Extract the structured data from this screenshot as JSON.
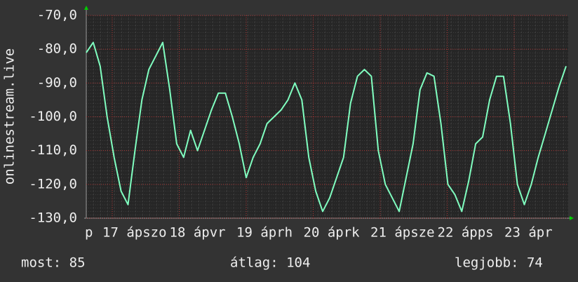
{
  "chart_data": {
    "type": "line",
    "y_label": "onlinestream.live",
    "xtick_labels": [
      "p",
      "17 ápszo",
      "18 ápvr",
      "19 áprh",
      "20 áprk",
      "21 ápsze",
      "22 ápps",
      "23 ápr"
    ],
    "series": [
      {
        "color": "#80ffc0",
        "values": [
          -81,
          -78,
          -85,
          -100,
          -112,
          -122,
          -126,
          -110,
          -95,
          -86,
          -82,
          -78,
          -92,
          -108,
          -112,
          -104,
          -110,
          -104,
          -98,
          -93,
          -93,
          -100,
          -108,
          -118,
          -112,
          -108,
          -102,
          -100,
          -98,
          -95,
          -90,
          -95,
          -112,
          -122,
          -128,
          -124,
          -118,
          -112,
          -96,
          -88,
          -86,
          -88,
          -110,
          -120,
          -124,
          -128,
          -118,
          -108,
          -92,
          -87,
          -88,
          -102,
          -120,
          -123,
          -128,
          -119,
          -108,
          -106,
          -95,
          -88,
          -88,
          -102,
          -120,
          -126,
          -120,
          -112,
          -105,
          -98,
          -91,
          -85
        ]
      }
    ],
    "ylim": [
      -130,
      -70
    ],
    "yticks": [
      {
        "value": -70,
        "label": "-70,0"
      },
      {
        "value": -80,
        "label": "-80,0"
      },
      {
        "value": -90,
        "label": "-90,0"
      },
      {
        "value": -100,
        "label": "-100,0"
      },
      {
        "value": -110,
        "label": "-110,0"
      },
      {
        "value": -120,
        "label": "-120,0"
      },
      {
        "value": -130,
        "label": "-130,0"
      }
    ],
    "grid": true,
    "footer": {
      "now": "most: 85",
      "avg": "átlag: 104",
      "best": "legjobb: 74"
    }
  }
}
